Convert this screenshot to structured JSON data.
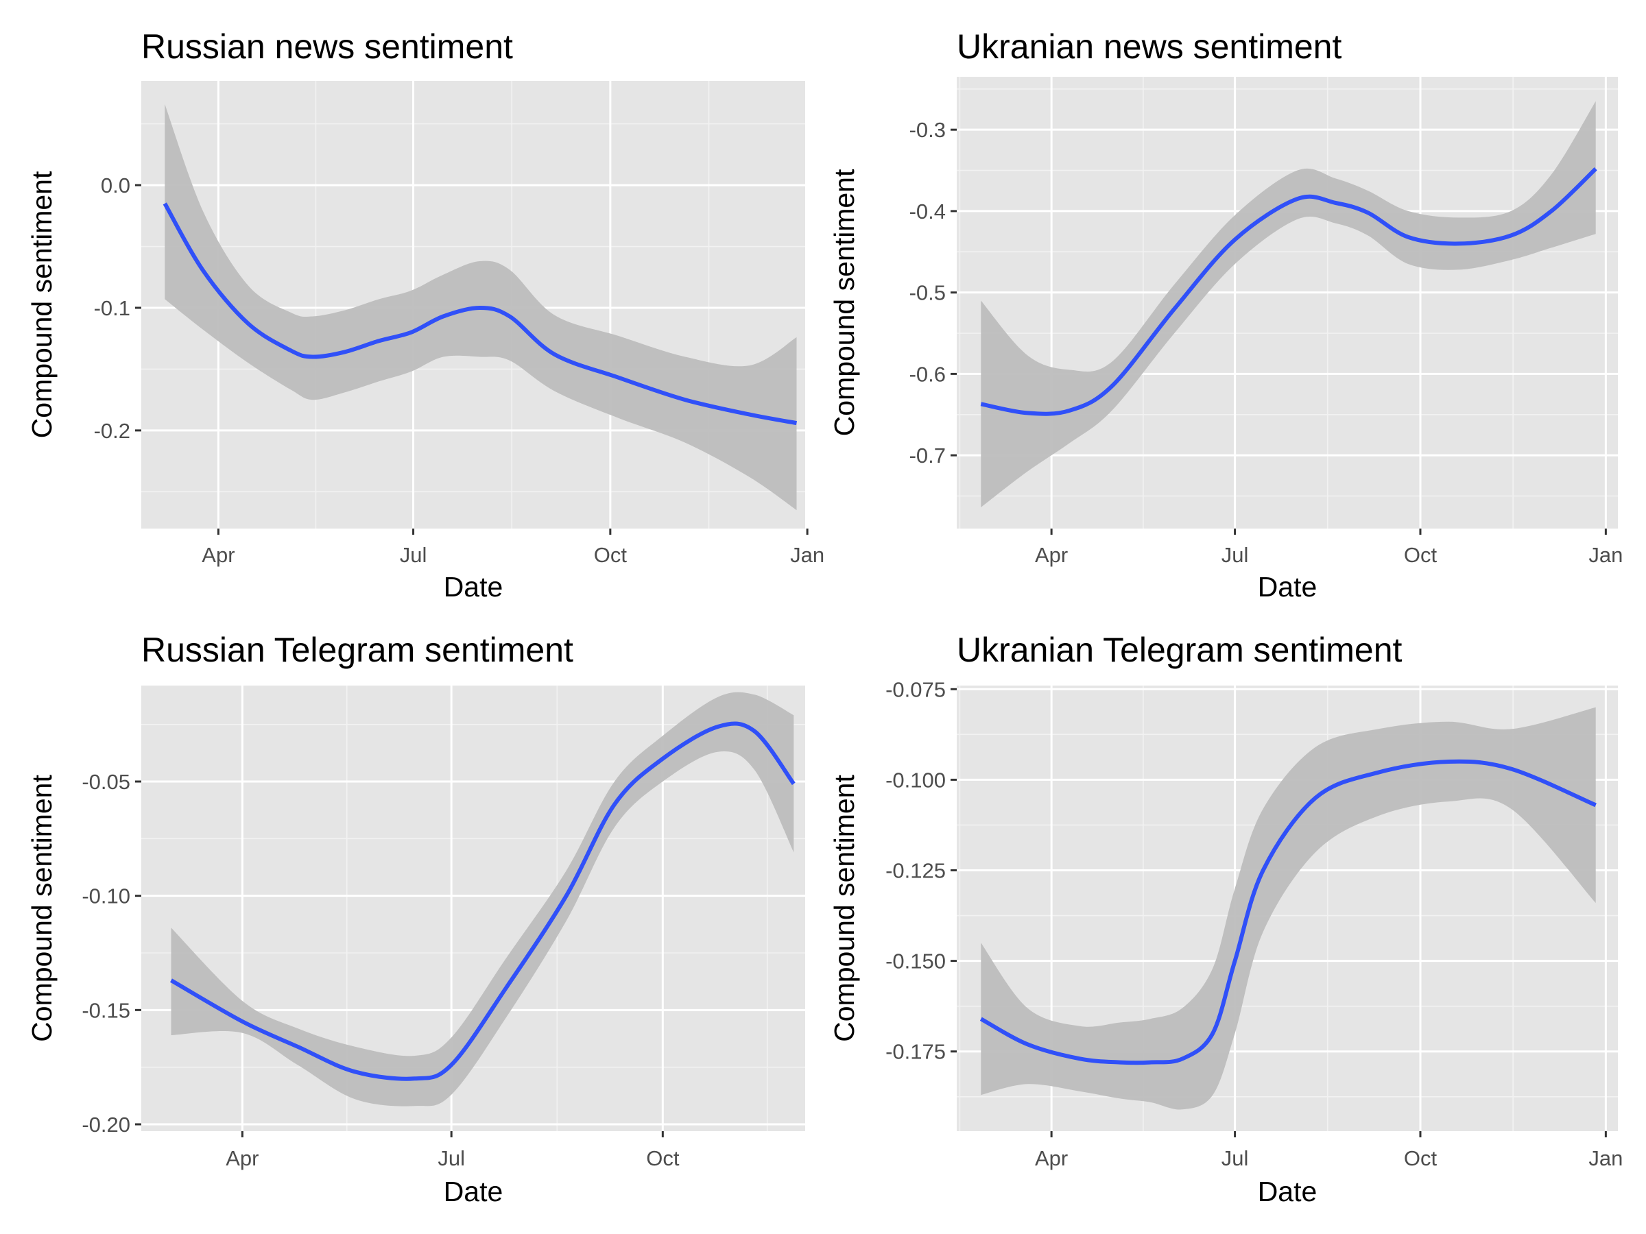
{
  "colors": {
    "panel_background": "#e5e5e5",
    "grid_major": "#ffffff",
    "grid_minor": "#f2f2f2",
    "line": "#3050f8",
    "ribbon": "#bdbdbd",
    "tick_text": "#4d4d4d"
  },
  "chart_data": [
    {
      "type": "line",
      "title": "Russian news sentiment",
      "xlabel": "Date",
      "ylabel": "Compound sentiment",
      "x_ticks": [
        "Apr",
        "Jul",
        "Oct",
        "Jan"
      ],
      "y_ticks": [
        "0.0",
        "-0.1",
        "-0.2"
      ],
      "xlim": [
        "2022-02-24",
        "2022-12-31"
      ],
      "ylim": [
        -0.28,
        0.085
      ],
      "grid": true,
      "legend": "none",
      "series": [
        {
          "kind": "smooth-with-ci",
          "points": [
            {
              "x": "2022-03-07",
              "y": -0.015,
              "lo": -0.093,
              "hi": 0.066
            },
            {
              "x": "2022-03-25",
              "y": -0.07,
              "lo": -0.118,
              "hi": -0.022
            },
            {
              "x": "2022-04-15",
              "y": -0.113,
              "lo": -0.145,
              "hi": -0.082
            },
            {
              "x": "2022-05-05",
              "y": -0.135,
              "lo": -0.167,
              "hi": -0.104
            },
            {
              "x": "2022-05-15",
              "y": -0.14,
              "lo": -0.175,
              "hi": -0.107
            },
            {
              "x": "2022-05-30",
              "y": -0.136,
              "lo": -0.169,
              "hi": -0.102
            },
            {
              "x": "2022-06-15",
              "y": -0.127,
              "lo": -0.16,
              "hi": -0.093
            },
            {
              "x": "2022-06-30",
              "y": -0.12,
              "lo": -0.152,
              "hi": -0.086
            },
            {
              "x": "2022-07-15",
              "y": -0.107,
              "lo": -0.14,
              "hi": -0.073
            },
            {
              "x": "2022-08-01",
              "y": -0.1,
              "lo": -0.14,
              "hi": -0.062
            },
            {
              "x": "2022-08-15",
              "y": -0.107,
              "lo": -0.143,
              "hi": -0.069
            },
            {
              "x": "2022-09-05",
              "y": -0.138,
              "lo": -0.168,
              "hi": -0.106
            },
            {
              "x": "2022-10-05",
              "y": -0.157,
              "lo": -0.19,
              "hi": -0.123
            },
            {
              "x": "2022-11-05",
              "y": -0.175,
              "lo": -0.21,
              "hi": -0.14
            },
            {
              "x": "2022-12-05",
              "y": -0.187,
              "lo": -0.238,
              "hi": -0.147
            },
            {
              "x": "2022-12-27",
              "y": -0.194,
              "lo": -0.265,
              "hi": -0.124
            }
          ]
        }
      ]
    },
    {
      "type": "line",
      "title": "Ukranian news sentiment",
      "xlabel": "Date",
      "ylabel": "Compound sentiment",
      "x_ticks": [
        "Apr",
        "Jul",
        "Oct",
        "Jan"
      ],
      "y_ticks": [
        "-0.3",
        "-0.4",
        "-0.5",
        "-0.6",
        "-0.7"
      ],
      "xlim": [
        "2022-02-13",
        "2023-01-07"
      ],
      "ylim": [
        -0.79,
        -0.235
      ],
      "grid": true,
      "legend": "none",
      "series": [
        {
          "kind": "smooth-with-ci",
          "points": [
            {
              "x": "2022-02-25",
              "y": -0.637,
              "lo": -0.764,
              "hi": -0.51
            },
            {
              "x": "2022-03-20",
              "y": -0.648,
              "lo": -0.72,
              "hi": -0.577
            },
            {
              "x": "2022-04-10",
              "y": -0.645,
              "lo": -0.685,
              "hi": -0.595
            },
            {
              "x": "2022-05-01",
              "y": -0.615,
              "lo": -0.645,
              "hi": -0.585
            },
            {
              "x": "2022-06-01",
              "y": -0.52,
              "lo": -0.55,
              "hi": -0.49
            },
            {
              "x": "2022-07-01",
              "y": -0.435,
              "lo": -0.465,
              "hi": -0.405
            },
            {
              "x": "2022-08-01",
              "y": -0.385,
              "lo": -0.41,
              "hi": -0.35
            },
            {
              "x": "2022-08-20",
              "y": -0.39,
              "lo": -0.415,
              "hi": -0.36
            },
            {
              "x": "2022-09-05",
              "y": -0.402,
              "lo": -0.43,
              "hi": -0.375
            },
            {
              "x": "2022-09-25",
              "y": -0.432,
              "lo": -0.465,
              "hi": -0.4
            },
            {
              "x": "2022-10-20",
              "y": -0.44,
              "lo": -0.472,
              "hi": -0.408
            },
            {
              "x": "2022-11-15",
              "y": -0.43,
              "lo": -0.46,
              "hi": -0.4
            },
            {
              "x": "2022-12-05",
              "y": -0.4,
              "lo": -0.445,
              "hi": -0.355
            },
            {
              "x": "2022-12-27",
              "y": -0.348,
              "lo": -0.428,
              "hi": -0.265
            }
          ]
        }
      ]
    },
    {
      "type": "line",
      "title": "Russian Telegram sentiment",
      "xlabel": "Date",
      "ylabel": "Compound sentiment",
      "x_ticks": [
        "Apr",
        "Jul",
        "Oct"
      ],
      "y_ticks": [
        "-0.05",
        "-0.10",
        "-0.15",
        "-0.20"
      ],
      "xlim": [
        "2022-02-16",
        "2022-12-02"
      ],
      "ylim": [
        -0.203,
        -0.008
      ],
      "grid": true,
      "legend": "none",
      "series": [
        {
          "kind": "smooth-with-ci",
          "points": [
            {
              "x": "2022-03-01",
              "y": -0.137,
              "lo": -0.161,
              "hi": -0.114
            },
            {
              "x": "2022-04-01",
              "y": -0.155,
              "lo": -0.16,
              "hi": -0.146
            },
            {
              "x": "2022-04-25",
              "y": -0.166,
              "lo": -0.174,
              "hi": -0.158
            },
            {
              "x": "2022-05-20",
              "y": -0.177,
              "lo": -0.189,
              "hi": -0.166
            },
            {
              "x": "2022-06-15",
              "y": -0.18,
              "lo": -0.192,
              "hi": -0.17
            },
            {
              "x": "2022-07-01",
              "y": -0.174,
              "lo": -0.187,
              "hi": -0.162
            },
            {
              "x": "2022-07-25",
              "y": -0.14,
              "lo": -0.153,
              "hi": -0.127
            },
            {
              "x": "2022-08-20",
              "y": -0.1,
              "lo": -0.111,
              "hi": -0.089
            },
            {
              "x": "2022-09-10",
              "y": -0.06,
              "lo": -0.07,
              "hi": -0.05
            },
            {
              "x": "2022-10-01",
              "y": -0.04,
              "lo": -0.05,
              "hi": -0.03
            },
            {
              "x": "2022-10-25",
              "y": -0.026,
              "lo": -0.037,
              "hi": -0.013
            },
            {
              "x": "2022-11-10",
              "y": -0.028,
              "lo": -0.045,
              "hi": -0.012
            },
            {
              "x": "2022-11-27",
              "y": -0.051,
              "lo": -0.081,
              "hi": -0.021
            }
          ]
        }
      ]
    },
    {
      "type": "line",
      "title": "Ukranian Telegram sentiment",
      "xlabel": "Date",
      "ylabel": "Compound sentiment",
      "x_ticks": [
        "Apr",
        "Jul",
        "Oct",
        "Jan"
      ],
      "y_ticks": [
        "-0.075",
        "-0.100",
        "-0.125",
        "-0.150",
        "-0.175"
      ],
      "xlim": [
        "2022-02-13",
        "2023-01-07"
      ],
      "ylim": [
        -0.197,
        -0.074
      ],
      "grid": true,
      "legend": "none",
      "series": [
        {
          "kind": "smooth-with-ci",
          "points": [
            {
              "x": "2022-02-25",
              "y": -0.166,
              "lo": -0.187,
              "hi": -0.145
            },
            {
              "x": "2022-03-20",
              "y": -0.173,
              "lo": -0.184,
              "hi": -0.163
            },
            {
              "x": "2022-04-15",
              "y": -0.177,
              "lo": -0.186,
              "hi": -0.168
            },
            {
              "x": "2022-05-05",
              "y": -0.178,
              "lo": -0.188,
              "hi": -0.167
            },
            {
              "x": "2022-05-20",
              "y": -0.178,
              "lo": -0.189,
              "hi": -0.166
            },
            {
              "x": "2022-06-05",
              "y": -0.177,
              "lo": -0.191,
              "hi": -0.163
            },
            {
              "x": "2022-06-20",
              "y": -0.17,
              "lo": -0.187,
              "hi": -0.152
            },
            {
              "x": "2022-07-01",
              "y": -0.15,
              "lo": -0.17,
              "hi": -0.13
            },
            {
              "x": "2022-07-15",
              "y": -0.125,
              "lo": -0.142,
              "hi": -0.108
            },
            {
              "x": "2022-08-10",
              "y": -0.105,
              "lo": -0.12,
              "hi": -0.091
            },
            {
              "x": "2022-09-10",
              "y": -0.098,
              "lo": -0.11,
              "hi": -0.086
            },
            {
              "x": "2022-10-15",
              "y": -0.095,
              "lo": -0.106,
              "hi": -0.084
            },
            {
              "x": "2022-11-15",
              "y": -0.097,
              "lo": -0.108,
              "hi": -0.086
            },
            {
              "x": "2022-12-27",
              "y": -0.107,
              "lo": -0.134,
              "hi": -0.08
            }
          ]
        }
      ]
    }
  ]
}
